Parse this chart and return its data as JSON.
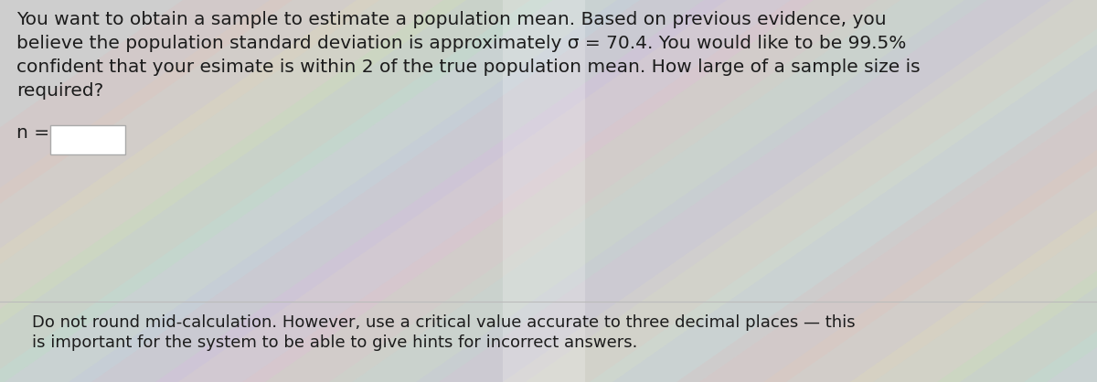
{
  "bg_color": "#cecece",
  "line1": "You want to obtain a sample to estimate a population mean. Based on previous evidence, you",
  "line2": "believe the population standard deviation is approximately σ = 70.4. You would like to be 99.5%",
  "line3": "confident that your esimate is within 2 of the true population mean. How large of a sample size is",
  "line4": "required?",
  "label_n": "n =",
  "footer_line1": "Do not round mid-calculation. However, use a critical value accurate to three decimal places — this",
  "footer_line2": "is important for the system to be able to give hints for incorrect answers.",
  "main_fontsize": 14.5,
  "footer_fontsize": 13.0,
  "label_fontsize": 14.5,
  "text_color": "#1c1c1c",
  "rainbow_colors": [
    "#ff9999",
    "#ffcc99",
    "#ffff88",
    "#99ff99",
    "#99ffff",
    "#aaaaff",
    "#ff99ff",
    "#ffbbaa",
    "#aaffcc",
    "#bbaaff",
    "#ffffaa",
    "#aaffff"
  ],
  "shimmer_alpha": 0.09,
  "bright_alpha": 0.22
}
